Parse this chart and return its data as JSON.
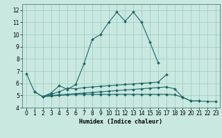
{
  "xlabel": "Humidex (Indice chaleur)",
  "xlim": [
    -0.5,
    23.5
  ],
  "ylim": [
    4,
    12.5
  ],
  "yticks": [
    4,
    5,
    6,
    7,
    8,
    9,
    10,
    11,
    12
  ],
  "xticks": [
    0,
    1,
    2,
    3,
    4,
    5,
    6,
    7,
    8,
    9,
    10,
    11,
    12,
    13,
    14,
    15,
    16,
    17,
    18,
    19,
    20,
    21,
    22,
    23
  ],
  "bg_color": "#c8e8e0",
  "grid_color": "#a0c8c0",
  "line_color": "#1a6666",
  "lines": [
    {
      "x": [
        0,
        1,
        2,
        3,
        4,
        5,
        6,
        7,
        8,
        9,
        10,
        11,
        12,
        13,
        14,
        15,
        16,
        17,
        18
      ],
      "y": [
        6.8,
        5.3,
        4.9,
        5.2,
        5.8,
        5.5,
        5.9,
        7.6,
        9.6,
        10.0,
        11.0,
        11.85,
        11.1,
        11.85,
        11.0,
        9.4,
        7.7,
        null,
        null
      ]
    },
    {
      "x": [
        1,
        2,
        3,
        4,
        5,
        6,
        7,
        8,
        9,
        10,
        11,
        12,
        13,
        14,
        15,
        16,
        17,
        18,
        19,
        20,
        21,
        22,
        23
      ],
      "y": [
        5.3,
        4.9,
        5.1,
        5.3,
        5.6,
        5.55,
        5.65,
        5.7,
        5.75,
        5.8,
        5.85,
        5.9,
        5.95,
        6.0,
        6.05,
        6.1,
        6.7,
        null,
        null,
        null,
        null,
        null,
        null
      ]
    },
    {
      "x": [
        2,
        3,
        4,
        5,
        6,
        7,
        8,
        9,
        10,
        11,
        12,
        13,
        14,
        15,
        16,
        17,
        18,
        19,
        20,
        21,
        22,
        23
      ],
      "y": [
        4.9,
        5.0,
        5.05,
        5.1,
        5.15,
        5.2,
        5.25,
        5.3,
        5.35,
        5.4,
        5.45,
        5.5,
        5.55,
        5.6,
        5.65,
        5.7,
        5.55,
        4.85,
        4.55,
        4.55,
        null,
        null
      ]
    },
    {
      "x": [
        2,
        3,
        4,
        5,
        6,
        7,
        8,
        9,
        10,
        11,
        12,
        13,
        14,
        15,
        16,
        17,
        18,
        19,
        20,
        21,
        22,
        23
      ],
      "y": [
        4.9,
        4.95,
        5.0,
        5.05,
        5.1,
        5.1,
        5.1,
        5.1,
        5.1,
        5.1,
        5.1,
        5.1,
        5.1,
        5.1,
        5.1,
        5.1,
        5.05,
        4.85,
        4.55,
        4.55,
        4.5,
        4.5
      ]
    }
  ],
  "tick_fontsize": 5.5,
  "xlabel_fontsize": 6.0
}
